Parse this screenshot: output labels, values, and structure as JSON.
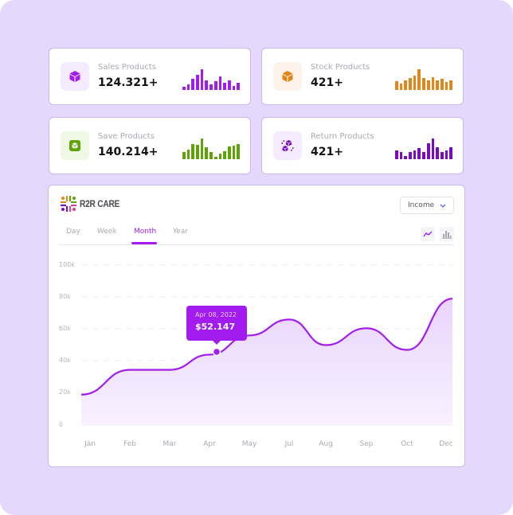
{
  "stats": [
    {
      "label": "Sales Products",
      "value": "124.321+",
      "icon": "box-icon",
      "color": "#a21cf0",
      "icon_bg": "#f4ebfe",
      "bars": [
        3,
        6,
        12,
        16,
        22,
        10,
        6,
        9,
        14,
        8,
        10,
        4,
        8
      ]
    },
    {
      "label": "Stock Products",
      "value": "421+",
      "icon": "box-icon",
      "color": "#e0861a",
      "icon_bg": "#fdf3ea",
      "bars": [
        10,
        7,
        11,
        14,
        17,
        24,
        14,
        11,
        15,
        11,
        13,
        9,
        11
      ]
    },
    {
      "label": "Save Products",
      "value": "140.214+",
      "icon": "save-box-icon",
      "color": "#5ea307",
      "icon_bg": "#eef8e4",
      "bars": [
        8,
        11,
        17,
        16,
        23,
        13,
        8,
        3,
        6,
        9,
        14,
        15,
        17
      ]
    },
    {
      "label": "Return Products",
      "value": "421+",
      "icon": "return-boxes-icon",
      "color": "#7a0bc0",
      "icon_bg": "#f4ebfe",
      "bars": [
        10,
        8,
        4,
        8,
        10,
        13,
        8,
        18,
        24,
        14,
        8,
        10,
        14
      ]
    }
  ],
  "chart_panel": {
    "logo_text": "R2R CARE",
    "dropdown": {
      "selected": "Income",
      "icon": "chevron-down-icon"
    },
    "tabs": [
      {
        "label": "Day",
        "active": false
      },
      {
        "label": "Week",
        "active": false
      },
      {
        "label": "Month",
        "active": true
      },
      {
        "label": "Year",
        "active": false
      }
    ],
    "view_toggles": [
      {
        "name": "line-chart-icon",
        "active": true
      },
      {
        "name": "bar-chart-icon",
        "active": false
      }
    ],
    "tooltip": {
      "date": "Apr 08, 2022",
      "value": "$52.147"
    },
    "accent": "#a21cf0"
  },
  "chart_data": {
    "type": "area",
    "title": "",
    "xlabel": "",
    "ylabel": "",
    "categories": [
      "Jan",
      "Feb",
      "Mar",
      "Apr",
      "May",
      "Jul",
      "Aug",
      "Sep",
      "Oct",
      "Dec"
    ],
    "y_ticks": [
      "0",
      "20k",
      "40k",
      "60k",
      "80k",
      "100k"
    ],
    "ylim": [
      0,
      100000
    ],
    "grid": true,
    "series": [
      {
        "name": "Income",
        "values": [
          19000,
          34500,
          34500,
          44000,
          56000,
          66000,
          50000,
          60500,
          47000,
          79000
        ]
      }
    ],
    "highlighted_point": {
      "date": "Apr 08, 2022",
      "value": 52147,
      "label": "$52.147"
    },
    "legend": "none"
  }
}
